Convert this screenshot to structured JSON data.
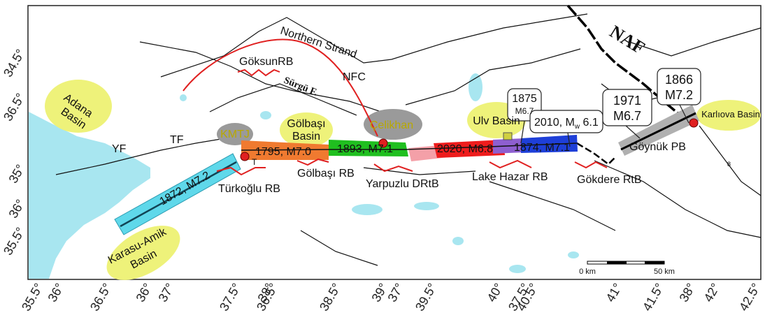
{
  "map": {
    "axis_left": [
      "34.5°",
      "36.5°",
      "35°",
      "36°",
      "35.5°"
    ],
    "axis_bottom": [
      "35.5°",
      "36°",
      "36.5°",
      "36°",
      "37°",
      "37.5°",
      "38°",
      "36.5°",
      "38.5°",
      "39°",
      "37°",
      "39.5°",
      "40°",
      "37.5°",
      "40.5°",
      "41°",
      "41.5°",
      "38°",
      "42°",
      "42.5°"
    ],
    "faults": [
      "Northern Strand",
      "NFC",
      "Sürgü F.",
      "YF",
      "TF",
      "NAF"
    ],
    "basins": {
      "adana": [
        "Adana",
        "Basin"
      ],
      "karasu": [
        "Karasu-Amik",
        "Basin"
      ],
      "golbasi": [
        "Gölbaşı",
        "Basin"
      ],
      "ulv": "Ulv Basin",
      "karliova": "Karlıova Basin"
    },
    "junctions": [
      "KMTJ",
      "Çelikhan"
    ],
    "ruptures": [
      "1872, M7.2",
      "1795, M7.0",
      "1893, M7.1",
      "2020, M6.8",
      "1874, M7.1"
    ],
    "step_basins": [
      "GöksunRB",
      "Türkoğlu RB",
      "Gölbaşı RB",
      "Yarpuzlu DRtB",
      "Lake Hazar RB",
      "Gökdere RtB",
      "Göynük PB"
    ],
    "callouts": {
      "e1875": [
        "1875",
        "M6.7"
      ],
      "e2010": [
        "2010, M",
        "w",
        " 6.1"
      ],
      "e1971": [
        "1971",
        "M6.7"
      ],
      "e1866": [
        "1866",
        "M7.2"
      ]
    },
    "scale": [
      "0 km",
      "50 km"
    ],
    "marks": [
      "T",
      "8"
    ]
  }
}
